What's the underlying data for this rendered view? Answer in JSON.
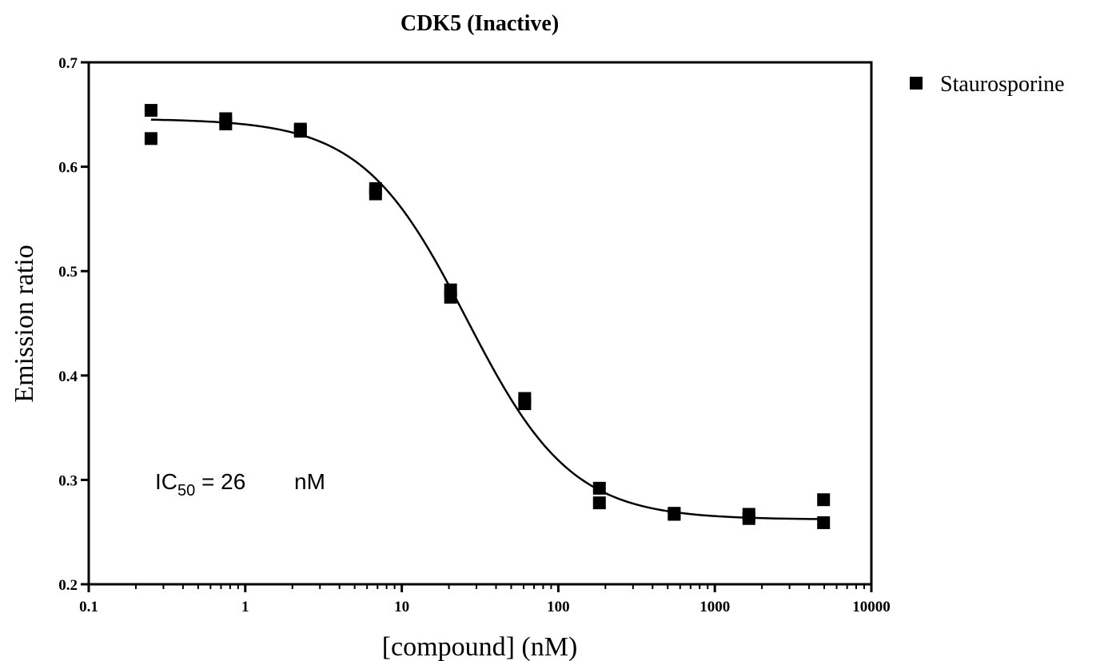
{
  "chart_data": {
    "type": "scatter",
    "title": "CDK5 (Inactive)",
    "xlabel": "[compound] (nM)",
    "ylabel": "Emission ratio",
    "x_scale": "log",
    "xlim": [
      0.1,
      10000
    ],
    "ylim": [
      0.2,
      0.7
    ],
    "x_ticks": [
      0.1,
      1,
      10,
      100,
      1000,
      10000
    ],
    "x_tick_labels": [
      "0.1",
      "1",
      "10",
      "100",
      "1000",
      "10000"
    ],
    "y_ticks": [
      0.2,
      0.3,
      0.4,
      0.5,
      0.6,
      0.7
    ],
    "y_tick_labels": [
      "0.2",
      "0.3",
      "0.4",
      "0.5",
      "0.6",
      "0.7"
    ],
    "legend": {
      "position": "top-right, outside plot",
      "entries": [
        "Staurosporine"
      ]
    },
    "grid": false,
    "series": [
      {
        "name": "Staurosporine",
        "marker": "square",
        "color": "#000000",
        "points": [
          [
            0.25,
            0.654
          ],
          [
            0.25,
            0.627
          ],
          [
            0.75,
            0.646
          ],
          [
            0.75,
            0.641
          ],
          [
            2.25,
            0.636
          ],
          [
            2.25,
            0.634
          ],
          [
            6.8,
            0.579
          ],
          [
            6.8,
            0.574
          ],
          [
            20.5,
            0.482
          ],
          [
            20.5,
            0.475
          ],
          [
            61,
            0.378
          ],
          [
            61,
            0.373
          ],
          [
            183,
            0.292
          ],
          [
            183,
            0.278
          ],
          [
            550,
            0.268
          ],
          [
            550,
            0.267
          ],
          [
            1650,
            0.267
          ],
          [
            1650,
            0.263
          ],
          [
            4950,
            0.281
          ],
          [
            4950,
            0.259
          ]
        ]
      }
    ],
    "fit_curve": {
      "model": "sigmoidal dose-response",
      "top": 0.646,
      "bottom": 0.262,
      "ic50": 26,
      "hill": 1.3,
      "x_range": [
        0.25,
        4950
      ]
    },
    "annotation": {
      "prefix": "IC",
      "subscript": "50",
      "text": " = 26",
      "unit": "nM"
    }
  }
}
